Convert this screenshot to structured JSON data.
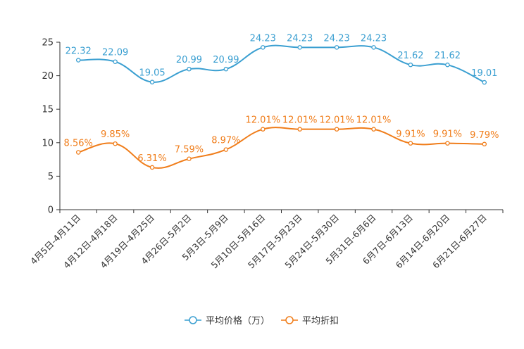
{
  "chart_data": {
    "type": "line",
    "title": "",
    "xlabel": "",
    "ylabel": "",
    "ylim": [
      0,
      25
    ],
    "yticks": [
      0,
      5,
      10,
      15,
      20,
      25
    ],
    "grid": false,
    "legend_position": "bottom-center",
    "categories": [
      "4月5日-4月11日",
      "4月12日-4月18日",
      "4月19日-4月25日",
      "4月26日-5月2日",
      "5月3日-5月9日",
      "5月10日-5月16日",
      "5月17日-5月23日",
      "5月24日-5月30日",
      "5月31日-6月6日",
      "6月7日-6月13日",
      "6月14日-6月20日",
      "6月21日-6月27日"
    ],
    "series": [
      {
        "name": "平均价格（万）",
        "color": "#3a9fd1",
        "values": [
          22.32,
          22.09,
          19.05,
          20.99,
          20.99,
          24.23,
          24.23,
          24.23,
          24.23,
          21.62,
          21.62,
          19.01
        ],
        "labels": [
          "22.32",
          "22.09",
          "19.05",
          "20.99",
          "20.99",
          "24.23",
          "24.23",
          "24.23",
          "24.23",
          "21.62",
          "21.62",
          "19.01"
        ]
      },
      {
        "name": "平均折扣",
        "color": "#f07d1a",
        "values": [
          8.56,
          9.85,
          6.31,
          7.59,
          8.97,
          12.01,
          12.01,
          12.01,
          12.01,
          9.91,
          9.91,
          9.79
        ],
        "labels": [
          "8.56%",
          "9.85%",
          "6.31%",
          "7.59%",
          "8.97%",
          "12.01%",
          "12.01%",
          "12.01%",
          "12.01%",
          "9.91%",
          "9.91%",
          "9.79%"
        ]
      }
    ]
  }
}
